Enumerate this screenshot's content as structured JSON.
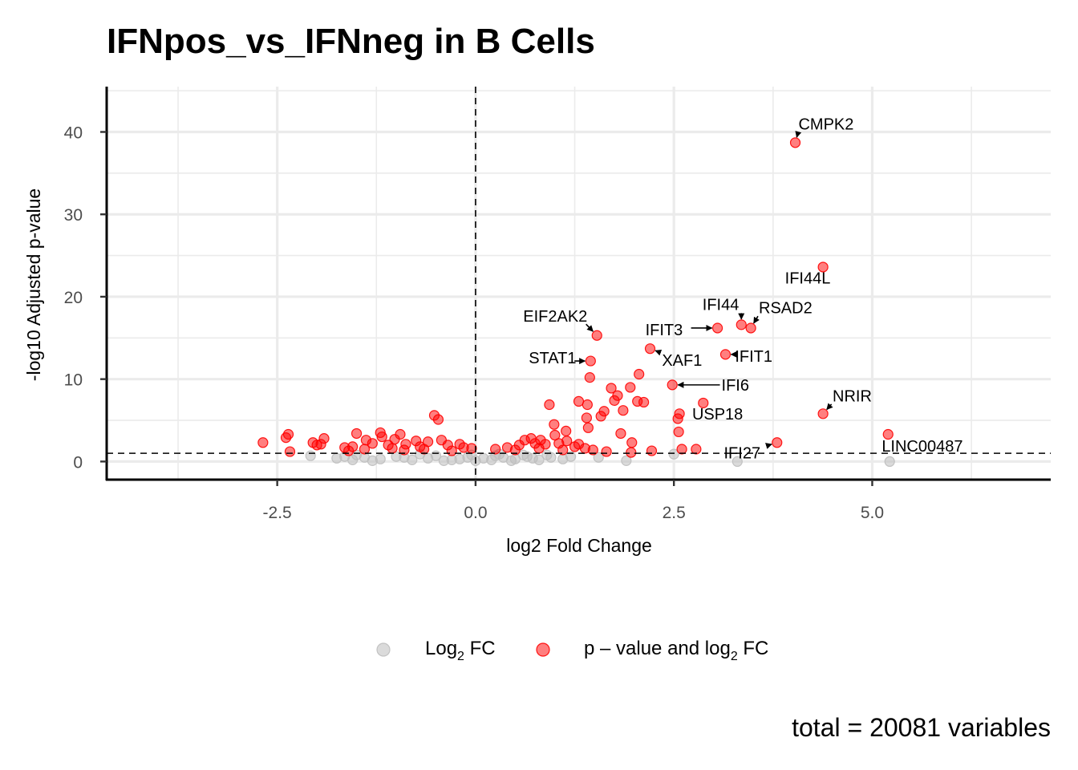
{
  "chart_data": {
    "type": "scatter",
    "title": "IFNpos_vs_IFNneg in B Cells",
    "xlabel": "log2 Fold Change",
    "ylabel": "-log10 Adjusted p-value",
    "xlim": [
      -4.65,
      7.25
    ],
    "ylim": [
      -2.2,
      45.5
    ],
    "x_ticks": [
      -2.5,
      0.0,
      2.5,
      5.0
    ],
    "x_tick_labels": [
      "-2.5",
      "0.0",
      "2.5",
      "5.0"
    ],
    "y_ticks": [
      0,
      10,
      20,
      30,
      40
    ],
    "y_tick_labels": [
      "0",
      "10",
      "20",
      "30",
      "40"
    ],
    "grid": true,
    "thresholds": {
      "log2fc": 0,
      "neg_log10_p": 1.0
    },
    "legend": {
      "position": "bottom",
      "entries": [
        {
          "prefix": "Log",
          "sub": "2",
          "suffix": " FC",
          "color": "#bebebe"
        },
        {
          "prefix": "p – value and log",
          "sub": "2",
          "suffix": " FC",
          "color": "#ff0000"
        }
      ]
    },
    "caption": "total = 20081 variables",
    "series": [
      {
        "name": "p – value and log2 FC",
        "color": "#ff0000",
        "points": [
          [
            4.03,
            38.7
          ],
          [
            4.38,
            23.6
          ],
          [
            3.35,
            16.6
          ],
          [
            3.47,
            16.2
          ],
          [
            3.05,
            16.2
          ],
          [
            1.53,
            15.3
          ],
          [
            2.2,
            13.7
          ],
          [
            3.15,
            13.0
          ],
          [
            1.45,
            12.2
          ],
          [
            1.44,
            10.2
          ],
          [
            2.06,
            10.6
          ],
          [
            2.48,
            9.3
          ],
          [
            1.95,
            9.0
          ],
          [
            1.71,
            8.9
          ],
          [
            1.79,
            8.0
          ],
          [
            1.75,
            7.4
          ],
          [
            1.3,
            7.3
          ],
          [
            2.12,
            7.2
          ],
          [
            2.04,
            7.3
          ],
          [
            0.93,
            6.9
          ],
          [
            1.41,
            6.9
          ],
          [
            1.62,
            6.1
          ],
          [
            1.86,
            6.2
          ],
          [
            2.87,
            7.1
          ],
          [
            2.57,
            5.8
          ],
          [
            2.55,
            5.2
          ],
          [
            4.38,
            5.8
          ],
          [
            1.4,
            5.3
          ],
          [
            1.58,
            5.5
          ],
          [
            0.99,
            4.5
          ],
          [
            1.42,
            4.1
          ],
          [
            2.56,
            3.6
          ],
          [
            1.83,
            3.4
          ],
          [
            1.14,
            3.7
          ],
          [
            1.0,
            3.2
          ],
          [
            5.2,
            3.3
          ],
          [
            3.8,
            2.3
          ],
          [
            1.97,
            2.3
          ],
          [
            2.6,
            1.5
          ],
          [
            2.78,
            1.5
          ],
          [
            2.22,
            1.3
          ],
          [
            1.96,
            1.1
          ],
          [
            -2.68,
            2.3
          ],
          [
            -2.36,
            3.3
          ],
          [
            -2.39,
            2.9
          ],
          [
            -2.34,
            1.2
          ],
          [
            -2.05,
            2.3
          ],
          [
            -2.0,
            2.0
          ],
          [
            -1.91,
            2.8
          ],
          [
            -1.95,
            2.1
          ],
          [
            -1.65,
            1.7
          ],
          [
            -1.55,
            1.8
          ],
          [
            -1.5,
            3.4
          ],
          [
            -1.38,
            2.6
          ],
          [
            -1.3,
            2.2
          ],
          [
            -1.2,
            3.5
          ],
          [
            -1.18,
            3.0
          ],
          [
            -1.1,
            2.0
          ],
          [
            -1.02,
            2.7
          ],
          [
            -0.95,
            3.3
          ],
          [
            -0.88,
            2.1
          ],
          [
            -0.75,
            2.5
          ],
          [
            -0.7,
            1.8
          ],
          [
            -0.6,
            2.4
          ],
          [
            -0.52,
            5.6
          ],
          [
            -0.47,
            5.1
          ],
          [
            -0.43,
            2.6
          ],
          [
            -0.35,
            2.0
          ],
          [
            -0.2,
            2.1
          ],
          [
            -0.15,
            1.7
          ],
          [
            -1.4,
            1.5
          ],
          [
            -0.9,
            1.4
          ],
          [
            -0.3,
            1.3
          ],
          [
            0.25,
            1.5
          ],
          [
            0.4,
            1.7
          ],
          [
            0.55,
            2.0
          ],
          [
            0.62,
            2.6
          ],
          [
            0.7,
            2.8
          ],
          [
            0.75,
            2.2
          ],
          [
            0.82,
            2.6
          ],
          [
            0.88,
            2.1
          ],
          [
            1.05,
            2.2
          ],
          [
            1.15,
            2.5
          ],
          [
            1.25,
            1.8
          ],
          [
            1.3,
            2.1
          ],
          [
            0.5,
            1.4
          ],
          [
            0.8,
            1.6
          ],
          [
            1.1,
            1.4
          ],
          [
            1.38,
            1.6
          ],
          [
            1.48,
            1.4
          ],
          [
            -1.6,
            1.3
          ],
          [
            -1.05,
            1.6
          ],
          [
            -0.65,
            1.5
          ],
          [
            -0.05,
            1.6
          ],
          [
            1.65,
            1.2
          ]
        ]
      },
      {
        "name": "Log2 FC",
        "color": "#bebebe",
        "points": [
          [
            -2.08,
            0.7
          ],
          [
            -1.75,
            0.4
          ],
          [
            -1.55,
            0.2
          ],
          [
            -1.4,
            0.5
          ],
          [
            -1.2,
            0.3
          ],
          [
            -1.0,
            0.6
          ],
          [
            -0.8,
            0.2
          ],
          [
            -0.6,
            0.4
          ],
          [
            -0.4,
            0.1
          ],
          [
            -0.2,
            0.3
          ],
          [
            -0.1,
            0.5
          ],
          [
            0.0,
            0.1
          ],
          [
            0.1,
            0.4
          ],
          [
            0.2,
            0.2
          ],
          [
            0.35,
            0.5
          ],
          [
            0.5,
            0.3
          ],
          [
            0.65,
            0.6
          ],
          [
            0.8,
            0.2
          ],
          [
            0.95,
            0.5
          ],
          [
            1.1,
            0.3
          ],
          [
            -1.65,
            0.6
          ],
          [
            -1.3,
            0.1
          ],
          [
            -0.9,
            0.5
          ],
          [
            -0.5,
            0.7
          ],
          [
            -0.3,
            0.2
          ],
          [
            0.25,
            0.7
          ],
          [
            0.45,
            0.1
          ],
          [
            0.72,
            0.4
          ],
          [
            0.9,
            0.8
          ],
          [
            1.2,
            0.6
          ],
          [
            1.9,
            0.1
          ],
          [
            2.5,
            0.9
          ],
          [
            3.3,
            0.0
          ],
          [
            5.22,
            0.0
          ],
          [
            1.55,
            0.5
          ],
          [
            -1.5,
            0.8
          ],
          [
            -0.7,
            0.9
          ],
          [
            0.3,
            0.9
          ],
          [
            0.6,
            0.8
          ],
          [
            -0.05,
            0.8
          ]
        ]
      }
    ],
    "annotations": [
      {
        "text": "CMPK2",
        "x": 4.03,
        "y": 38.7,
        "label_x": 4.07,
        "label_y": 40.3
      },
      {
        "text": "IFI44L",
        "x": 4.38,
        "y": 23.6,
        "label_x": 3.9,
        "label_y": 21.6
      },
      {
        "text": "IFI44",
        "x": 3.35,
        "y": 16.6,
        "label_x": 2.86,
        "label_y": 18.4
      },
      {
        "text": "RSAD2",
        "x": 3.47,
        "y": 16.2,
        "label_x": 3.57,
        "label_y": 18.0
      },
      {
        "text": "EIF2AK2",
        "x": 1.53,
        "y": 15.3,
        "label_x": 0.6,
        "label_y": 17.0
      },
      {
        "text": "IFIT3",
        "x": 3.05,
        "y": 16.2,
        "label_x": 2.14,
        "label_y": 15.3
      },
      {
        "text": "STAT1",
        "x": 1.45,
        "y": 12.2,
        "label_x": 0.67,
        "label_y": 11.9
      },
      {
        "text": "XAF1",
        "x": 2.2,
        "y": 13.7,
        "label_x": 2.35,
        "label_y": 11.6
      },
      {
        "text": "IFIT1",
        "x": 3.15,
        "y": 13.0,
        "label_x": 3.27,
        "label_y": 12.1
      },
      {
        "text": "IFI6",
        "x": 2.48,
        "y": 9.3,
        "label_x": 3.1,
        "label_y": 8.6
      },
      {
        "text": "NRIR",
        "x": 4.38,
        "y": 5.8,
        "label_x": 4.5,
        "label_y": 7.3
      },
      {
        "text": "USP18",
        "x": 2.87,
        "y": 7.1,
        "label_x": 2.73,
        "label_y": 5.1
      },
      {
        "text": "LINC00487",
        "x": 5.2,
        "y": 3.3,
        "label_x": 5.12,
        "label_y": 1.2
      },
      {
        "text": "IFI27",
        "x": 3.8,
        "y": 2.3,
        "label_x": 3.13,
        "label_y": 0.4
      }
    ]
  }
}
